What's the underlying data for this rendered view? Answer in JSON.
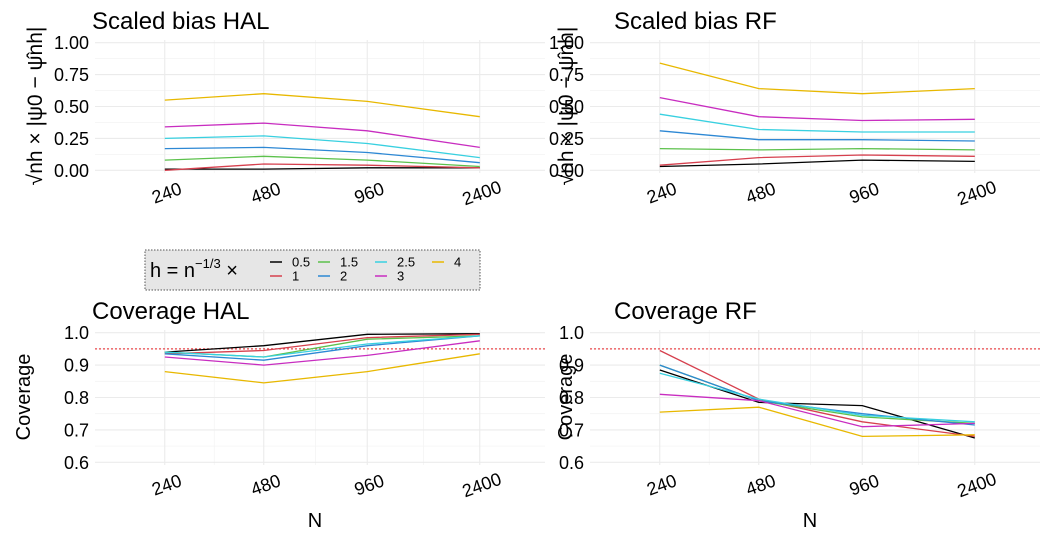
{
  "colors": {
    "0.5": "#000000",
    "1": "#d6404e",
    "1.5": "#5cc14c",
    "2": "#2d88d4",
    "2.5": "#38d0e0",
    "3": "#c82dc0",
    "4": "#e8b800",
    "reference": "#e8474a"
  },
  "legend": {
    "title_main": "h = n",
    "title_exponent": "−1/3",
    "title_times": "×",
    "entries": [
      "0.5",
      "1",
      "1.5",
      "2",
      "2.5",
      "3",
      "4"
    ]
  },
  "chart_data": [
    {
      "type": "line",
      "title": "Scaled bias HAL",
      "ylabel": "√nh × |ψ0 − ψ̂nh|",
      "xlabel": "",
      "categories": [
        "240",
        "480",
        "960",
        "2400"
      ],
      "ylim": [
        0,
        1
      ],
      "yticks": [
        "0.00",
        "0.25",
        "0.50",
        "0.75",
        "1.00"
      ],
      "yticks_values": [
        0,
        0.25,
        0.5,
        0.75,
        1
      ],
      "reference_line": null,
      "series": [
        {
          "name": "0.5",
          "values": [
            0.01,
            0.01,
            0.02,
            0.02
          ]
        },
        {
          "name": "1",
          "values": [
            0.0,
            0.05,
            0.04,
            0.02
          ]
        },
        {
          "name": "1.5",
          "values": [
            0.08,
            0.11,
            0.08,
            0.03
          ]
        },
        {
          "name": "2",
          "values": [
            0.17,
            0.18,
            0.14,
            0.06
          ]
        },
        {
          "name": "2.5",
          "values": [
            0.25,
            0.27,
            0.21,
            0.1
          ]
        },
        {
          "name": "3",
          "values": [
            0.34,
            0.37,
            0.31,
            0.18
          ]
        },
        {
          "name": "4",
          "values": [
            0.55,
            0.6,
            0.54,
            0.42
          ]
        }
      ]
    },
    {
      "type": "line",
      "title": "Scaled bias RF",
      "ylabel": "√nh × |ψ0 − ψ̂nh|",
      "xlabel": "",
      "categories": [
        "240",
        "480",
        "960",
        "2400"
      ],
      "ylim": [
        0,
        1
      ],
      "yticks": [
        "0.00",
        "0.25",
        "0.50",
        "0.75",
        "1.00"
      ],
      "yticks_values": [
        0,
        0.25,
        0.5,
        0.75,
        1
      ],
      "reference_line": null,
      "series": [
        {
          "name": "0.5",
          "values": [
            0.03,
            0.05,
            0.08,
            0.07
          ]
        },
        {
          "name": "1",
          "values": [
            0.04,
            0.1,
            0.12,
            0.11
          ]
        },
        {
          "name": "1.5",
          "values": [
            0.17,
            0.16,
            0.17,
            0.16
          ]
        },
        {
          "name": "2",
          "values": [
            0.31,
            0.24,
            0.24,
            0.23
          ]
        },
        {
          "name": "2.5",
          "values": [
            0.44,
            0.32,
            0.3,
            0.3
          ]
        },
        {
          "name": "3",
          "values": [
            0.57,
            0.42,
            0.39,
            0.4
          ]
        },
        {
          "name": "4",
          "values": [
            0.84,
            0.64,
            0.6,
            0.64
          ]
        }
      ]
    },
    {
      "type": "line",
      "title": "Coverage HAL",
      "ylabel": "Coverage",
      "xlabel": "N",
      "categories": [
        "240",
        "480",
        "960",
        "2400"
      ],
      "ylim": [
        0.6,
        1.0
      ],
      "yticks": [
        "0.6",
        "0.7",
        "0.8",
        "0.9",
        "1.0"
      ],
      "yticks_values": [
        0.6,
        0.7,
        0.8,
        0.9,
        1.0
      ],
      "reference_line": 0.95,
      "series": [
        {
          "name": "0.5",
          "values": [
            0.94,
            0.96,
            0.995,
            0.997
          ]
        },
        {
          "name": "1",
          "values": [
            0.935,
            0.945,
            0.985,
            0.995
          ]
        },
        {
          "name": "1.5",
          "values": [
            0.94,
            0.925,
            0.98,
            0.99
          ]
        },
        {
          "name": "2",
          "values": [
            0.935,
            0.915,
            0.96,
            0.99
          ]
        },
        {
          "name": "2.5",
          "values": [
            0.94,
            0.925,
            0.965,
            0.99
          ]
        },
        {
          "name": "3",
          "values": [
            0.925,
            0.9,
            0.93,
            0.975
          ]
        },
        {
          "name": "4",
          "values": [
            0.88,
            0.845,
            0.88,
            0.935
          ]
        }
      ]
    },
    {
      "type": "line",
      "title": "Coverage RF",
      "ylabel": "Coverage",
      "xlabel": "N",
      "categories": [
        "240",
        "480",
        "960",
        "2400"
      ],
      "ylim": [
        0.6,
        1.0
      ],
      "yticks": [
        "0.6",
        "0.7",
        "0.8",
        "0.9",
        "1.0"
      ],
      "yticks_values": [
        0.6,
        0.7,
        0.8,
        0.9,
        1.0
      ],
      "reference_line": 0.95,
      "series": [
        {
          "name": "0.5",
          "values": [
            0.885,
            0.785,
            0.775,
            0.675
          ]
        },
        {
          "name": "1",
          "values": [
            0.945,
            0.795,
            0.725,
            0.68
          ]
        },
        {
          "name": "1.5",
          "values": [
            0.9,
            0.79,
            0.74,
            0.72
          ]
        },
        {
          "name": "2",
          "values": [
            0.9,
            0.79,
            0.75,
            0.715
          ]
        },
        {
          "name": "2.5",
          "values": [
            0.875,
            0.795,
            0.745,
            0.725
          ]
        },
        {
          "name": "3",
          "values": [
            0.81,
            0.79,
            0.71,
            0.72
          ]
        },
        {
          "name": "4",
          "values": [
            0.755,
            0.77,
            0.68,
            0.685
          ]
        }
      ]
    }
  ]
}
